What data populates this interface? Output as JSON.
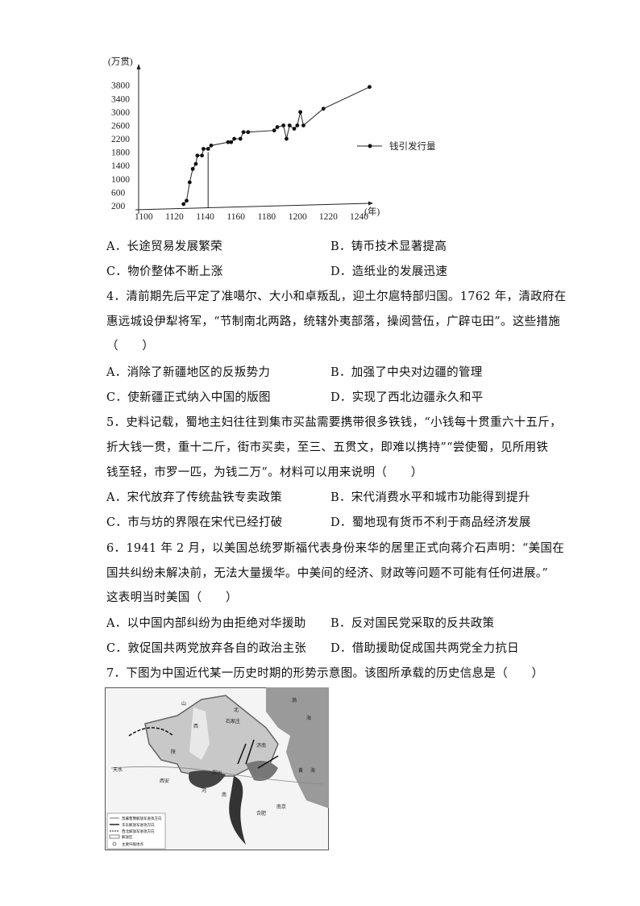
{
  "chart_data": {
    "type": "line",
    "ylabel": "(万贯)",
    "xlabel": "(年)",
    "x_ticks": [
      1100,
      1120,
      1140,
      1160,
      1180,
      1200,
      1220,
      1240
    ],
    "y_ticks": [
      200,
      600,
      1000,
      1400,
      1800,
      2200,
      2600,
      3000,
      3400,
      3800
    ],
    "xlim": [
      1100,
      1250
    ],
    "ylim": [
      200,
      3900
    ],
    "legend_position": "right",
    "series": [
      {
        "name": "钱引发行量",
        "x": [
          1125,
          1127,
          1129,
          1131,
          1133,
          1134,
          1137,
          1138,
          1141,
          1143,
          1154,
          1156,
          1158,
          1162,
          1164,
          1167,
          1184,
          1186,
          1190,
          1192,
          1194,
          1197,
          1199,
          1201,
          1203,
          1216,
          1246
        ],
        "y": [
          250,
          350,
          900,
          1300,
          1450,
          1700,
          1700,
          1900,
          1900,
          2000,
          2100,
          2100,
          2200,
          2200,
          2400,
          2400,
          2450,
          2550,
          2600,
          2200,
          2600,
          2500,
          2600,
          3000,
          2600,
          3100,
          3750
        ]
      }
    ]
  },
  "q3": {
    "options": [
      "A．长途贸易发展繁荣",
      "B．铸币技术显著提高",
      "C．物价整体不断上涨",
      "D．造纸业的发展迅速"
    ]
  },
  "q4": {
    "lines": [
      "4．清前期先后平定了准噶尔、大小和卓叛乱，迎土尔扈特部归国。1762 年，清政府在",
      "惠远城设伊犁将军，“节制南北两路，统辖外夷部落，操阅营伍，广辟屯田”。这些措施",
      "（　　）"
    ],
    "options": [
      "A．消除了新疆地区的反叛势力",
      "B．加强了中央对边疆的管理",
      "C．使新疆正式纳入中国的版图",
      "D．实现了西北边疆永久和平"
    ]
  },
  "q5": {
    "lines": [
      "5．史料记载，蜀地主妇往往到集市买盐需要携带很多铁钱，“小钱每十贯重六十五斤，",
      "折大钱一贯，重十二斤，街市买卖，至三、五贯文，即难以携持”“尝使蜀，见所用铁",
      "钱至轻，市罗一匹，为钱二万”。材料可以用来说明（　　）"
    ],
    "options": [
      "A．宋代放弃了传统盐铁专卖政策",
      "B．宋代消费水平和城市功能得到提升",
      "C．市与坊的界限在宋代已经打破",
      "D．蜀地现有货币不利于商品经济发展"
    ]
  },
  "q6": {
    "lines": [
      "6．1941 年 2 月，以美国总统罗斯福代表身份来华的居里正式向蒋介石声明：“美国在",
      "国共纠纷未解决前，无法大量援华。中美间的经济、财政等问题不可能有任何进展。”",
      "这表明当时美国（　　）"
    ],
    "options": [
      "A．以中国内部纠纷为由拒绝对华援助",
      "B．反对国民党采取的反共政策",
      "C．敦促国共两党放弃各自的政治主张",
      "D．借助援助促成国共两党全力抗日"
    ]
  },
  "q7": {
    "lines": [
      "7．下图为中国近代某一历史时期的形势示意图。该图所承载的历史信息是（　　）"
    ]
  },
  "map": {
    "legend": [
      "晋冀鲁豫解放军进攻方向",
      "华东解放军进攻方向",
      "西北解放军进攻方向",
      "解放区",
      "主要歼敌地点"
    ],
    "labels": [
      "山",
      "西",
      "陕",
      "西安",
      "河",
      "南",
      "北",
      "合肥",
      "南京",
      "渤",
      "海",
      "黄",
      "海",
      "济南",
      "石家庄",
      "天水",
      "郑州"
    ]
  }
}
